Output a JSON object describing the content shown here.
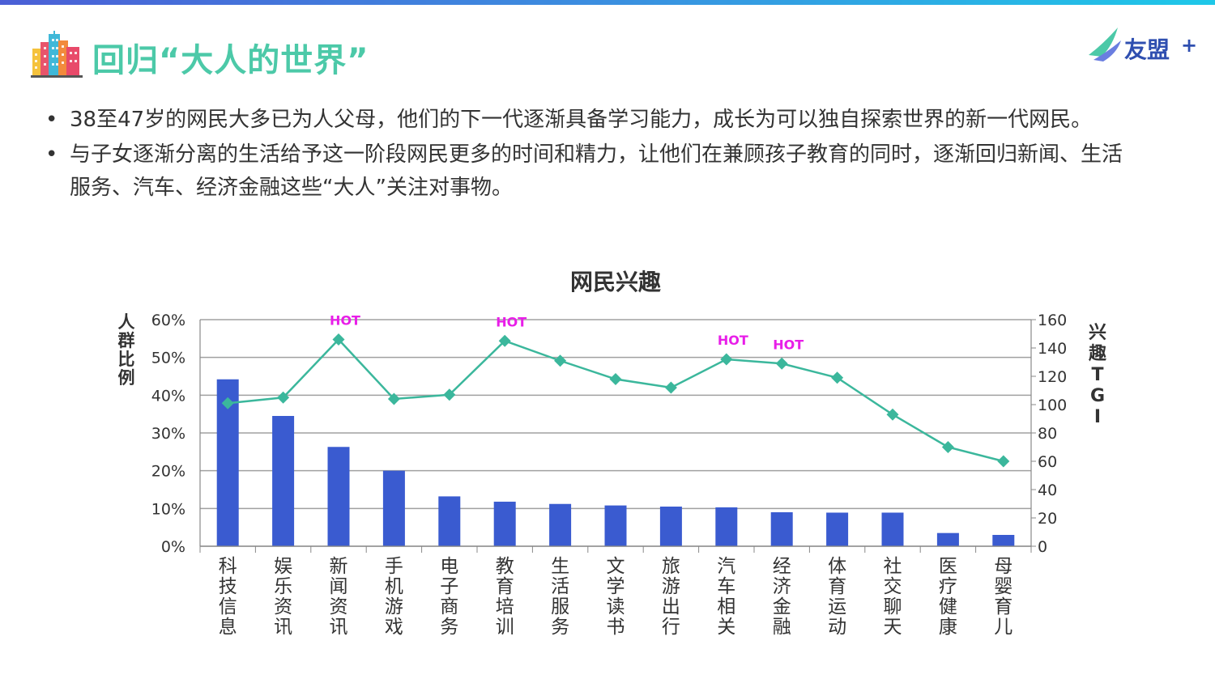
{
  "header": {
    "title": "回归“大人的世界”",
    "logo_text": "友盟",
    "logo_plus": "+"
  },
  "bullets": [
    {
      "dot": "•",
      "text": "38至47岁的网民大多已为人父母，他们的下一代逐渐具备学习能力，成长为可以独自探索世界的新一代网民。"
    },
    {
      "dot": "•",
      "text": "与子女逐渐分离的生活给予这一阶段网民更多的时间和精力，让他们在兼顾孩子教育的同时，逐渐回归新闻、生活服务、汽车、经济金融这些“大人”关注对事物。"
    }
  ],
  "colors": {
    "bar": "#3a5bd0",
    "line": "#3bb79c",
    "hot": "#e81ee8",
    "title": "#4cc9a8",
    "grid": "#9a9a9a"
  },
  "chart_data": {
    "type": "bar+line",
    "title": "网民兴趣",
    "categories": [
      "科技信息",
      "娱乐资讯",
      "新闻资讯",
      "手机游戏",
      "电子商务",
      "教育培训",
      "生活服务",
      "文学读书",
      "旅游出行",
      "汽车相关",
      "经济金融",
      "体育运动",
      "社交聊天",
      "医疗健康",
      "母婴育儿"
    ],
    "series": [
      {
        "name": "人群比例",
        "type": "bar",
        "axis": "left",
        "values": [
          44.2,
          34.5,
          26.3,
          20.0,
          13.2,
          11.8,
          11.2,
          10.8,
          10.5,
          10.3,
          9.0,
          8.9,
          8.9,
          3.5,
          3.0
        ]
      },
      {
        "name": "兴趣TGI",
        "type": "line",
        "axis": "right",
        "values": [
          101,
          105,
          146,
          104,
          107,
          145,
          131,
          118,
          112,
          132,
          129,
          119,
          93,
          70,
          60
        ]
      }
    ],
    "ylabel_left": "人群比例",
    "ylabel_right": "兴趣TGI",
    "ylim_left": [
      0,
      60
    ],
    "ylim_right": [
      0,
      160
    ],
    "yticks_left": [
      "0%",
      "10%",
      "20%",
      "30%",
      "40%",
      "50%",
      "60%"
    ],
    "yticks_right": [
      "0",
      "20",
      "40",
      "60",
      "80",
      "100",
      "120",
      "140",
      "160"
    ],
    "hot_label": "HOT",
    "hot_indices": [
      2,
      5,
      9,
      10
    ],
    "grid": true
  }
}
